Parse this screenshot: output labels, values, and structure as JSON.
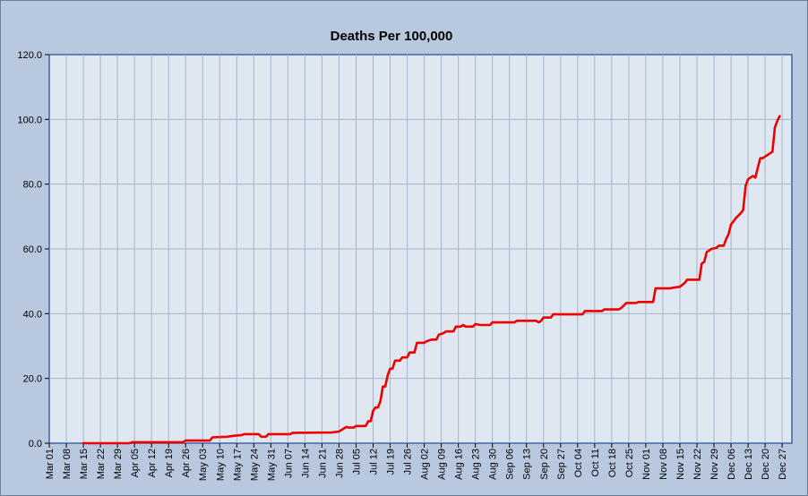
{
  "chart_data": {
    "type": "line",
    "title": "Deaths Per 100,000",
    "xlabel": "",
    "ylabel": "",
    "ylim": [
      0,
      120
    ],
    "yticks": [
      "0.0",
      "20.0",
      "40.0",
      "60.0",
      "80.0",
      "100.0",
      "120.0"
    ],
    "grid": true,
    "legend": "none",
    "x_range": [
      "Mar 01",
      "Dec 31"
    ],
    "x_tick_labels": [
      "Mar 01",
      "Mar 08",
      "Mar 15",
      "Mar 22",
      "Mar 29",
      "Apr 05",
      "Apr 12",
      "Apr 19",
      "Apr 26",
      "May 03",
      "May 10",
      "May 17",
      "May 24",
      "May 31",
      "Jun 07",
      "Jun 14",
      "Jun 21",
      "Jun 28",
      "Jul 05",
      "Jul 12",
      "Jul 19",
      "Jul 26",
      "Aug 02",
      "Aug 09",
      "Aug 16",
      "Aug 23",
      "Aug 30",
      "Sep 06",
      "Sep 13",
      "Sep 20",
      "Sep 27",
      "Oct 04",
      "Oct 11",
      "Oct 18",
      "Oct 25",
      "Nov 01",
      "Nov 08",
      "Nov 15",
      "Nov 22",
      "Nov 29",
      "Dec 06",
      "Dec 13",
      "Dec 20",
      "Dec 27"
    ],
    "series": [
      {
        "color": "#ee0000",
        "points": [
          [
            "Mar 15",
            0
          ],
          [
            "Apr 03",
            0
          ],
          [
            "Apr 04",
            0.3
          ],
          [
            "Apr 25",
            0.3
          ],
          [
            "Apr 26",
            0.8
          ],
          [
            "May 06",
            0.8
          ],
          [
            "May 07",
            1.8
          ],
          [
            "May 13",
            2.0
          ],
          [
            "May 16",
            2.3
          ],
          [
            "May 19",
            2.5
          ],
          [
            "May 20",
            2.8
          ],
          [
            "May 26",
            2.8
          ],
          [
            "May 27",
            2.0
          ],
          [
            "May 29",
            2.0
          ],
          [
            "May 30",
            2.8
          ],
          [
            "Jun 08",
            2.8
          ],
          [
            "Jun 09",
            3.2
          ],
          [
            "Jun 25",
            3.3
          ],
          [
            "Jun 28",
            3.6
          ],
          [
            "Jul 01",
            5.0
          ],
          [
            "Jul 02",
            4.8
          ],
          [
            "Jul 04",
            4.8
          ],
          [
            "Jul 05",
            5.3
          ],
          [
            "Jul 09",
            5.3
          ],
          [
            "Jul 10",
            6.8
          ],
          [
            "Jul 11",
            6.8
          ],
          [
            "Jul 12",
            10.0
          ],
          [
            "Jul 13",
            11.0
          ],
          [
            "Jul 14",
            11.0
          ],
          [
            "Jul 15",
            13.0
          ],
          [
            "Jul 16",
            17.5
          ],
          [
            "Jul 17",
            17.5
          ],
          [
            "Jul 18",
            21.0
          ],
          [
            "Jul 19",
            23.0
          ],
          [
            "Jul 20",
            23.0
          ],
          [
            "Jul 21",
            25.5
          ],
          [
            "Jul 23",
            25.5
          ],
          [
            "Jul 24",
            26.5
          ],
          [
            "Jul 26",
            26.5
          ],
          [
            "Jul 27",
            28.0
          ],
          [
            "Jul 29",
            28.0
          ],
          [
            "Jul 30",
            31.0
          ],
          [
            "Aug 02",
            31.0
          ],
          [
            "Aug 03",
            31.5
          ],
          [
            "Aug 05",
            32.0
          ],
          [
            "Aug 07",
            32.0
          ],
          [
            "Aug 08",
            33.5
          ],
          [
            "Aug 10",
            34.0
          ],
          [
            "Aug 11",
            34.5
          ],
          [
            "Aug 14",
            34.5
          ],
          [
            "Aug 15",
            36.0
          ],
          [
            "Aug 17",
            36.0
          ],
          [
            "Aug 18",
            36.5
          ],
          [
            "Aug 19",
            36.0
          ],
          [
            "Aug 22",
            36.0
          ],
          [
            "Aug 23",
            36.8
          ],
          [
            "Aug 25",
            36.5
          ],
          [
            "Aug 29",
            36.5
          ],
          [
            "Aug 30",
            37.3
          ],
          [
            "Sep 08",
            37.3
          ],
          [
            "Sep 09",
            37.8
          ],
          [
            "Sep 17",
            37.8
          ],
          [
            "Sep 18",
            37.3
          ],
          [
            "Sep 19",
            37.8
          ],
          [
            "Sep 20",
            38.8
          ],
          [
            "Sep 23",
            38.8
          ],
          [
            "Sep 24",
            39.8
          ],
          [
            "Oct 06",
            39.8
          ],
          [
            "Oct 07",
            40.8
          ],
          [
            "Oct 14",
            40.8
          ],
          [
            "Oct 15",
            41.3
          ],
          [
            "Oct 21",
            41.3
          ],
          [
            "Oct 22",
            41.8
          ],
          [
            "Oct 24",
            43.3
          ],
          [
            "Oct 28",
            43.3
          ],
          [
            "Oct 29",
            43.6
          ],
          [
            "Nov 04",
            43.6
          ],
          [
            "Nov 05",
            47.8
          ],
          [
            "Nov 11",
            47.8
          ],
          [
            "Nov 12",
            48.0
          ],
          [
            "Nov 15",
            48.3
          ],
          [
            "Nov 17",
            49.5
          ],
          [
            "Nov 18",
            50.5
          ],
          [
            "Nov 23",
            50.5
          ],
          [
            "Nov 24",
            55.5
          ],
          [
            "Nov 25",
            56.0
          ],
          [
            "Nov 26",
            59.0
          ],
          [
            "Nov 27",
            59.5
          ],
          [
            "Nov 28",
            60.0
          ],
          [
            "Nov 30",
            60.3
          ],
          [
            "Dec 01",
            61.0
          ],
          [
            "Dec 03",
            61.0
          ],
          [
            "Dec 04",
            63.0
          ],
          [
            "Dec 05",
            64.5
          ],
          [
            "Dec 06",
            67.5
          ],
          [
            "Dec 08",
            69.5
          ],
          [
            "Dec 10",
            71.0
          ],
          [
            "Dec 11",
            72.0
          ],
          [
            "Dec 12",
            79.5
          ],
          [
            "Dec 13",
            81.5
          ],
          [
            "Dec 15",
            82.5
          ],
          [
            "Dec 16",
            82.0
          ],
          [
            "Dec 17",
            85.0
          ],
          [
            "Dec 18",
            88.0
          ],
          [
            "Dec 19",
            88.0
          ],
          [
            "Dec 22",
            89.5
          ],
          [
            "Dec 23",
            90.0
          ],
          [
            "Dec 24",
            97.5
          ],
          [
            "Dec 25",
            99.5
          ],
          [
            "Dec 26",
            101.0
          ]
        ]
      }
    ]
  }
}
